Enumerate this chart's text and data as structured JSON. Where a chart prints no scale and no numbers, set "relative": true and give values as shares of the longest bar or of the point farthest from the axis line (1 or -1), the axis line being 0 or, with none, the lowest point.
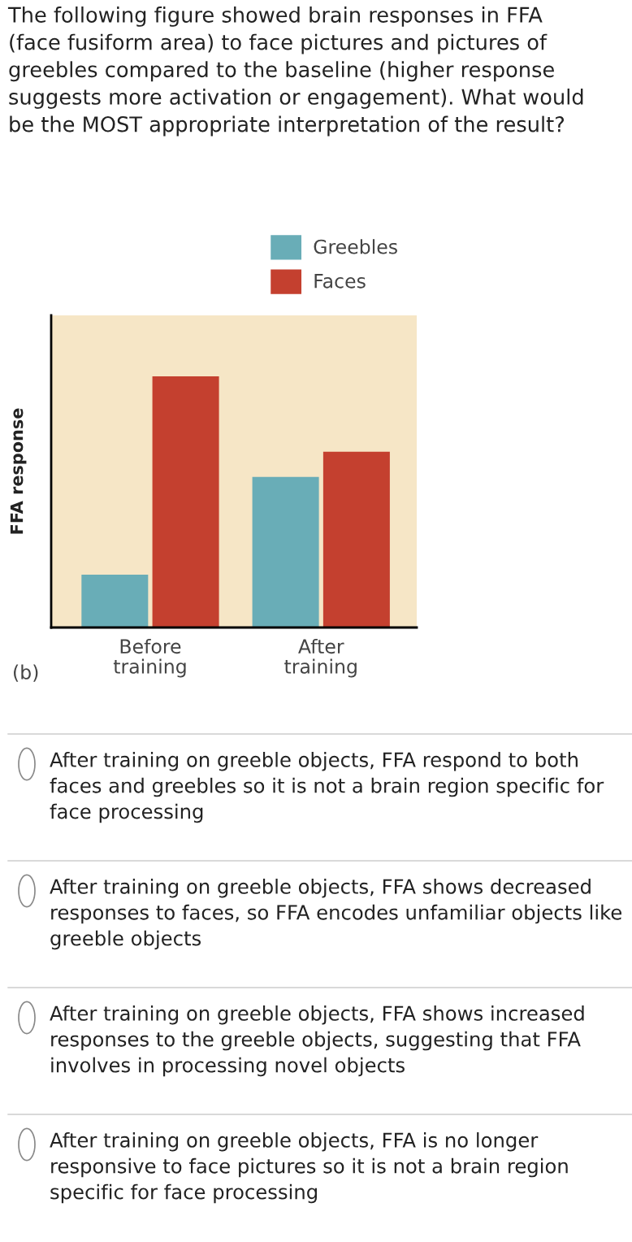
{
  "chart_data": {
    "type": "bar",
    "relative": true,
    "title": "The following figure showed brain responses in FFA\n(face fusiform area) to face pictures and pictures of\ngreebles compared to the baseline (higher response\nsuggests more activation or engagement). What would\nbe the MOST appropriate interpretation of the result?",
    "ylabel": "FFA response",
    "categories": [
      "Before\ntraining",
      "After\ntraining"
    ],
    "series": [
      {
        "name": "Greebles",
        "color": "#69adb7",
        "values": [
          0.21,
          0.6
        ]
      },
      {
        "name": "Faces",
        "color": "#c4402f",
        "values": [
          1,
          0.7
        ]
      }
    ],
    "legend": "top",
    "annotations": [
      "(b)",
      "After training on greeble objects, FFA respond to both\nfaces and greebles so it is not a brain region specific for\nface processing",
      "After training on greeble objects, FFA shows decreased\nresponses to faces, so FFA encodes unfamiliar objects like\ngreeble objects",
      "After training on greeble objects, FFA shows increased\nresponses to the greeble objects, suggesting that FFA\ninvolves in processing novel objects",
      "After training on greeble objects, FFA is no longer\nresponsive to face pictures so it is not a brain region\nspecific for face processing"
    ]
  }
}
